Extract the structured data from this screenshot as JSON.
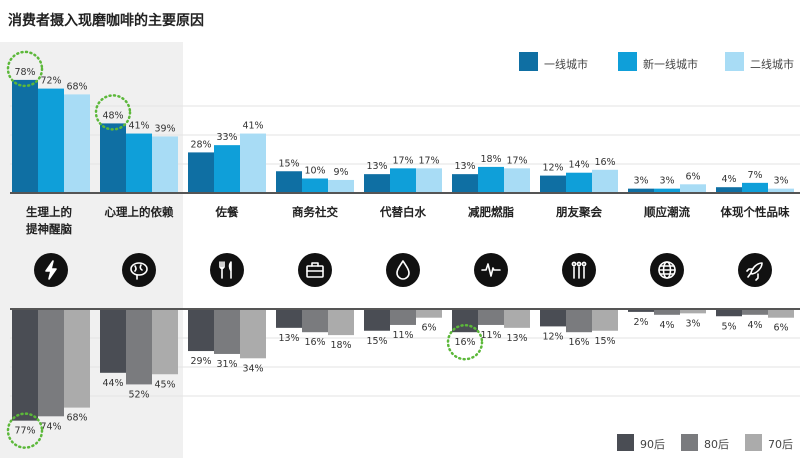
{
  "title": "消费者摄入现磨咖啡的主要原因",
  "chart_data": [
    {
      "type": "bar",
      "categories": [
        "生理上的\n提神醒脑",
        "心理上的依赖",
        "佐餐",
        "商务社交",
        "代替白水",
        "减肥燃脂",
        "朋友聚会",
        "顺应潮流",
        "体现个性品味"
      ],
      "icons": [
        "lightning-icon",
        "brain-icon",
        "fork-knife-icon",
        "briefcase-icon",
        "water-drop-icon",
        "heartbeat-icon",
        "people-icon",
        "globe-icon",
        "rocket-icon"
      ],
      "series": [
        {
          "name": "一线城市",
          "color": "#0f6fa3",
          "values": [
            78,
            48,
            28,
            15,
            13,
            13,
            12,
            3,
            4
          ]
        },
        {
          "name": "新一线城市",
          "color": "#0f9fd9",
          "values": [
            72,
            41,
            33,
            10,
            17,
            18,
            14,
            3,
            7
          ]
        },
        {
          "name": "二线城市",
          "color": "#a8dcf5",
          "values": [
            68,
            39,
            41,
            9,
            17,
            17,
            16,
            6,
            3
          ]
        }
      ],
      "value_labels": [
        "78%",
        "72%",
        "68%",
        "48%",
        "41%",
        "39%",
        "28%",
        "33%",
        "41%",
        "15%",
        "10%",
        "9%",
        "13%",
        "17%",
        "17%",
        "13%",
        "18%",
        "17%",
        "12%",
        "14%",
        "16%",
        "3%",
        "3%",
        "6%",
        "4%",
        "7%",
        "3%"
      ],
      "highlights": [
        [
          0,
          0
        ],
        [
          1,
          0
        ]
      ],
      "legend": "top-right",
      "grid": true,
      "ylim": [
        0,
        80
      ]
    },
    {
      "type": "bar",
      "orientation": "downward",
      "series": [
        {
          "name": "90后",
          "color": "#4a4d54",
          "values": [
            77,
            44,
            29,
            13,
            15,
            16,
            12,
            2,
            5
          ]
        },
        {
          "name": "80后",
          "color": "#7a7b7e",
          "values": [
            74,
            52,
            31,
            16,
            11,
            11,
            16,
            4,
            4
          ]
        },
        {
          "name": "70后",
          "color": "#ababab",
          "values": [
            68,
            45,
            34,
            18,
            6,
            13,
            15,
            3,
            6
          ]
        }
      ],
      "highlights": [
        [
          0,
          0
        ],
        [
          5,
          0
        ]
      ],
      "legend": "bottom-right",
      "grid": true,
      "ylim": [
        0,
        80
      ]
    }
  ]
}
